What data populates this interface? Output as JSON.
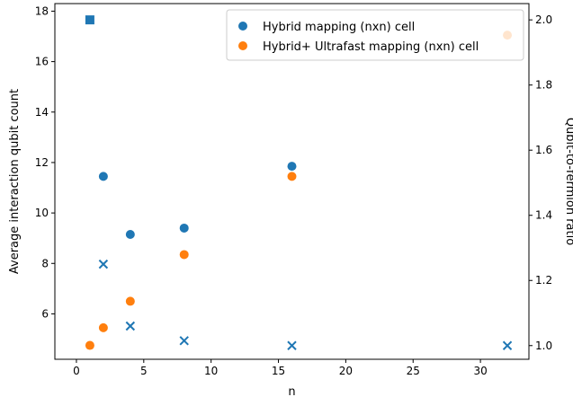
{
  "chart_data": {
    "type": "scatter",
    "title": "",
    "xlabel": "n",
    "ylabel": "Average interaction qubit count",
    "y2label": "Qubit-to-fermion ratio",
    "xlim": [
      -1.6,
      33.6
    ],
    "ylim": [
      4.2,
      18.3
    ],
    "y2lim": [
      0.958,
      2.05
    ],
    "xticks": [
      0,
      5,
      10,
      15,
      20,
      25,
      30
    ],
    "yticks": [
      6,
      8,
      10,
      12,
      14,
      16,
      18
    ],
    "y2ticks": [
      1.0,
      1.2,
      1.4,
      1.6,
      1.8,
      2.0
    ],
    "grid": false,
    "legend_position": "top-right",
    "colors": {
      "blue": "#1f77b4",
      "orange": "#ff7f0e"
    },
    "series": [
      {
        "name": "Hybrid mapping (nxn) cell",
        "axis": "left",
        "marker": "circle",
        "color": "#1f77b4",
        "x": [
          2,
          4,
          8,
          16
        ],
        "y": [
          11.45,
          9.15,
          9.4,
          11.85
        ]
      },
      {
        "name": "Hybrid+ Ultrafast mapping (nxn) cell",
        "axis": "left",
        "marker": "circle",
        "color": "#ff7f0e",
        "x": [
          1,
          2,
          4,
          8,
          16,
          32
        ],
        "y": [
          4.75,
          5.45,
          6.5,
          8.35,
          11.45,
          17.05
        ]
      },
      {
        "axis": "right",
        "marker": "x",
        "color": "#1f77b4",
        "x": [
          2,
          4,
          8,
          16,
          32
        ],
        "y": [
          1.25,
          1.06,
          1.015,
          1.0,
          1.0
        ]
      },
      {
        "axis": "right",
        "marker": "square",
        "color": "#1f77b4",
        "x": [
          1
        ],
        "y": [
          2.0
        ]
      }
    ]
  }
}
